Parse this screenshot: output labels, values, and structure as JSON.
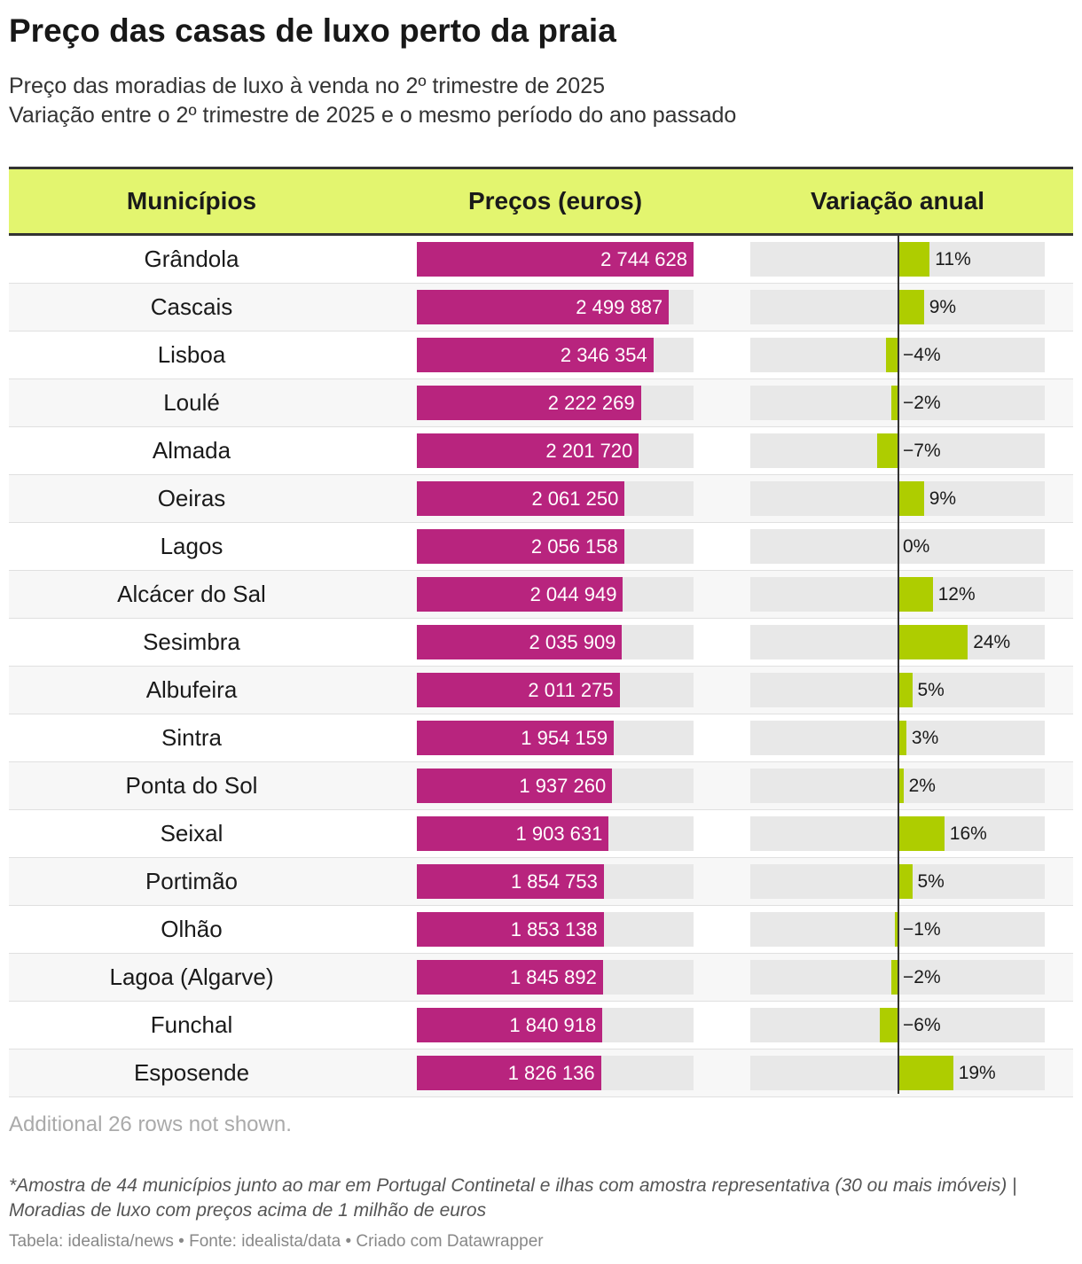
{
  "title": "Preço das casas de luxo perto da praia",
  "subtitle_line1": "Preço das moradias de luxo à venda no 2º trimestre de 2025",
  "subtitle_line2": "Variação entre o 2º trimestre de 2025 e o mesmo período do ano passado",
  "columns": {
    "municipio": "Municípios",
    "preco": "Preços (euros)",
    "variacao": "Variação anual"
  },
  "colors": {
    "header_bg": "#e3f56f",
    "price_bar": "#b8247e",
    "variation_bar": "#aecd00",
    "track": "#e8e8e8"
  },
  "chart_data": {
    "type": "table",
    "title": "Preço das casas de luxo perto da praia",
    "price_max": 2744628,
    "variation_range": [
      -20,
      24
    ],
    "rows": [
      {
        "municipio": "Grândola",
        "preco": 2744628,
        "preco_label": "2 744 628",
        "variacao": 11,
        "variacao_label": "11%"
      },
      {
        "municipio": "Cascais",
        "preco": 2499887,
        "preco_label": "2 499 887",
        "variacao": 9,
        "variacao_label": "9%"
      },
      {
        "municipio": "Lisboa",
        "preco": 2346354,
        "preco_label": "2 346 354",
        "variacao": -4,
        "variacao_label": "−4%"
      },
      {
        "municipio": "Loulé",
        "preco": 2222269,
        "preco_label": "2 222 269",
        "variacao": -2,
        "variacao_label": "−2%"
      },
      {
        "municipio": "Almada",
        "preco": 2201720,
        "preco_label": "2 201 720",
        "variacao": -7,
        "variacao_label": "−7%"
      },
      {
        "municipio": "Oeiras",
        "preco": 2061250,
        "preco_label": "2 061 250",
        "variacao": 9,
        "variacao_label": "9%"
      },
      {
        "municipio": "Lagos",
        "preco": 2056158,
        "preco_label": "2 056 158",
        "variacao": 0,
        "variacao_label": "0%"
      },
      {
        "municipio": "Alcácer do Sal",
        "preco": 2044949,
        "preco_label": "2 044 949",
        "variacao": 12,
        "variacao_label": "12%"
      },
      {
        "municipio": "Sesimbra",
        "preco": 2035909,
        "preco_label": "2 035 909",
        "variacao": 24,
        "variacao_label": "24%"
      },
      {
        "municipio": "Albufeira",
        "preco": 2011275,
        "preco_label": "2 011 275",
        "variacao": 5,
        "variacao_label": "5%"
      },
      {
        "municipio": "Sintra",
        "preco": 1954159,
        "preco_label": "1 954 159",
        "variacao": 3,
        "variacao_label": "3%"
      },
      {
        "municipio": "Ponta do Sol",
        "preco": 1937260,
        "preco_label": "1 937 260",
        "variacao": 2,
        "variacao_label": "2%"
      },
      {
        "municipio": "Seixal",
        "preco": 1903631,
        "preco_label": "1 903 631",
        "variacao": 16,
        "variacao_label": "16%"
      },
      {
        "municipio": "Portimão",
        "preco": 1854753,
        "preco_label": "1 854 753",
        "variacao": 5,
        "variacao_label": "5%"
      },
      {
        "municipio": "Olhão",
        "preco": 1853138,
        "preco_label": "1 853 138",
        "variacao": -1,
        "variacao_label": "−1%"
      },
      {
        "municipio": "Lagoa (Algarve)",
        "preco": 1845892,
        "preco_label": "1 845 892",
        "variacao": -2,
        "variacao_label": "−2%"
      },
      {
        "municipio": "Funchal",
        "preco": 1840918,
        "preco_label": "1 840 918",
        "variacao": -6,
        "variacao_label": "−6%"
      },
      {
        "municipio": "Esposende",
        "preco": 1826136,
        "preco_label": "1 826 136",
        "variacao": 19,
        "variacao_label": "19%"
      }
    ]
  },
  "rows_note": "Additional 26 rows not shown.",
  "footnote": "*Amostra de 44 municípios junto ao mar em Portugal Continetal e ilhas com amostra representativa (30 ou mais imóveis) | Moradias de luxo com preços acima de 1 milhão de euros",
  "credit": "Tabela: idealista/news • Fonte: idealista/data • Criado com Datawrapper"
}
